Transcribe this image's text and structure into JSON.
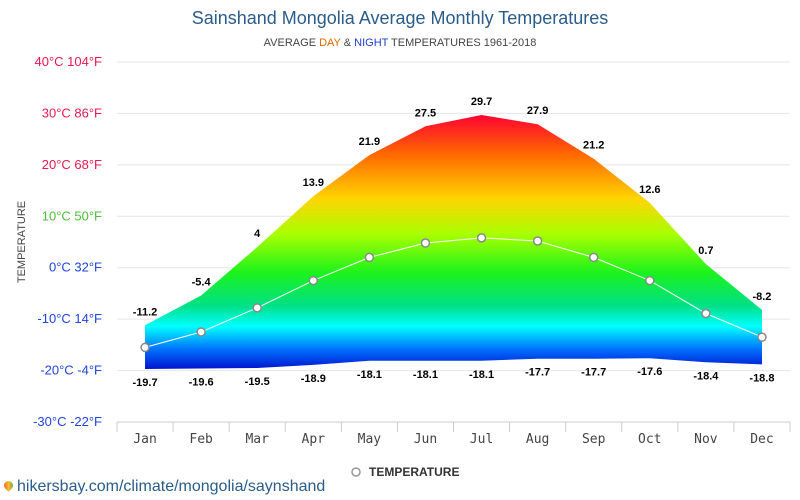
{
  "chart_data": {
    "type": "area",
    "title": "Sainshand Mongolia Average Monthly Temperatures",
    "subtitle": {
      "prefix": "AVERAGE ",
      "day": "DAY",
      "amp": " & ",
      "night": "NIGHT",
      "suffix": " TEMPERATURES 1961-2018"
    },
    "ylabel": "TEMPERATURE",
    "categories": [
      "Jan",
      "Feb",
      "Mar",
      "Apr",
      "May",
      "Jun",
      "Jul",
      "Aug",
      "Sep",
      "Oct",
      "Nov",
      "Dec"
    ],
    "series": [
      {
        "values": [
          -11.2,
          -5.4,
          4,
          13.9,
          21.9,
          27.5,
          29.7,
          27.9,
          21.2,
          12.6,
          0.7,
          -8.2
        ]
      },
      {
        "values": [
          -19.7,
          -19.6,
          -19.5,
          -18.9,
          -18.1,
          -18.1,
          -18.1,
          -17.7,
          -17.7,
          -17.6,
          -18.4,
          -18.8
        ]
      },
      {
        "name": "TEMPERATURE",
        "values": [
          -15.5,
          -12.5,
          -7.8,
          -2.5,
          2,
          4.8,
          5.8,
          5.2,
          2,
          -2.5,
          -8.9,
          -13.5
        ]
      }
    ],
    "y_ticks": [
      {
        "value": 40,
        "label": "40°C 104°F",
        "color": "#e8194f"
      },
      {
        "value": 30,
        "label": "30°C 86°F",
        "color": "#e8194f"
      },
      {
        "value": 20,
        "label": "20°C 68°F",
        "color": "#e8194f"
      },
      {
        "value": 10,
        "label": "10°C 50°F",
        "color": "#4cbf3a"
      },
      {
        "value": 0,
        "label": "0°C 32°F",
        "color": "#2244dd"
      },
      {
        "value": -10,
        "label": "-10°C 14°F",
        "color": "#2244dd"
      },
      {
        "value": -20,
        "label": "-20°C -4°F",
        "color": "#2244dd"
      },
      {
        "value": -30,
        "label": "-30°C -22°F",
        "color": "#2244dd"
      }
    ],
    "ylim": [
      -30,
      40
    ],
    "grid": true,
    "legend": "bottom-center",
    "colors": {
      "day": "#e06a00",
      "night": "#1d3fd1",
      "title": "#2b5c8a"
    }
  },
  "source": "hikersbay.com/climate/mongolia/saynshand"
}
